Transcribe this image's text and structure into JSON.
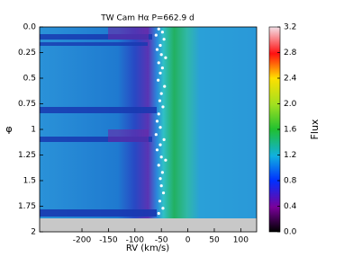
{
  "chart_data": {
    "type": "heatmap",
    "title": "TW Cam Hα P=662.9 d",
    "xlabel": "RV (km/s)",
    "ylabel": "φ",
    "colorbar_label": "Flux",
    "xlim": [
      -280,
      130
    ],
    "xticks": [
      -200,
      -150,
      -100,
      -50,
      0,
      50,
      100
    ],
    "ylim": [
      0,
      2
    ],
    "yticks": [
      {
        "value": 0,
        "label": "0.0"
      },
      0.25,
      0.5,
      0.75,
      1,
      1.25,
      1.5,
      1.75,
      2
    ],
    "clim": [
      0,
      3.2
    ],
    "cticks": [
      {
        "value": 0,
        "label": "0.0"
      },
      0.4,
      0.8,
      1.2,
      1.6,
      {
        "value": 2,
        "label": "2.0"
      },
      2.4,
      2.8,
      3.2
    ],
    "points": {
      "color": "#ffffff",
      "x": [
        -55,
        -48,
        -60,
        -45,
        -52,
        -58,
        -50,
        -42,
        -55,
        -48,
        -52,
        -56,
        -44,
        -50,
        -53,
        -47,
        -55,
        -58,
        -52,
        -60,
        -45,
        -52,
        -58,
        -50,
        -42,
        -55,
        -48,
        -52,
        -50,
        -46,
        -53,
        -47,
        -55
      ],
      "y": [
        0.02,
        0.05,
        0.08,
        0.12,
        0.18,
        0.22,
        0.27,
        0.3,
        0.35,
        0.4,
        0.45,
        0.52,
        0.58,
        0.65,
        0.72,
        0.78,
        0.85,
        0.92,
        0.98,
        1.05,
        1.1,
        1.15,
        1.2,
        1.27,
        1.3,
        1.35,
        1.42,
        1.48,
        1.55,
        1.62,
        1.7,
        1.77,
        1.82
      ]
    }
  }
}
